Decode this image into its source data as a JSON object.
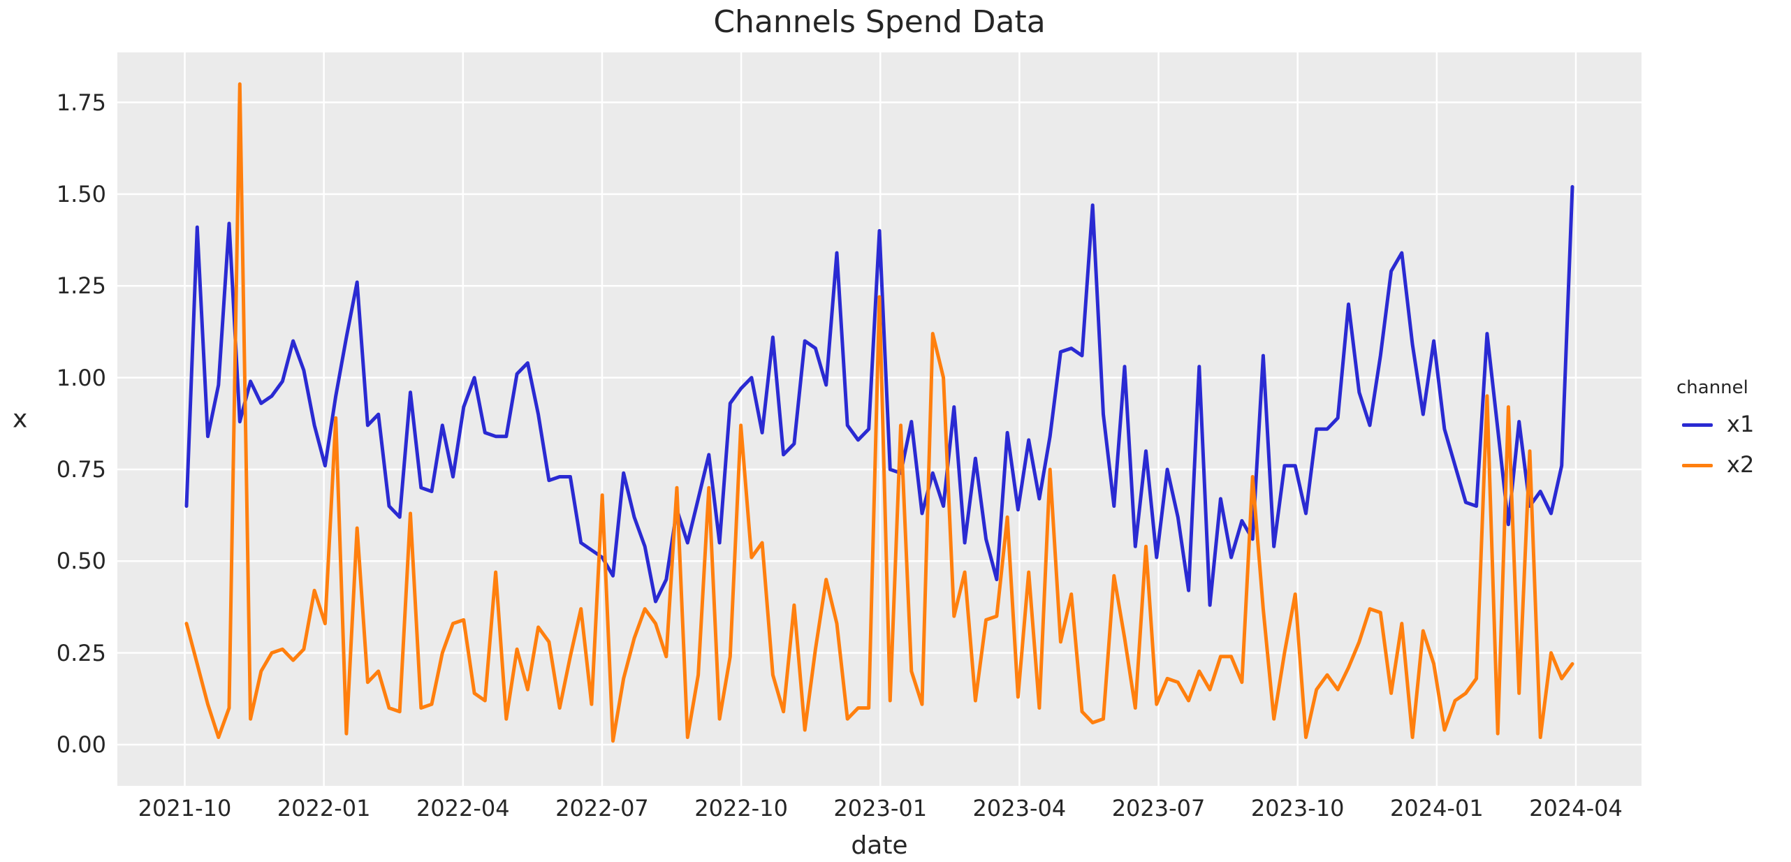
{
  "title": "Channels Spend Data",
  "axes": {
    "xlabel": "date",
    "ylabel": "x",
    "y_ticks": [
      "0.00",
      "0.25",
      "0.50",
      "0.75",
      "1.00",
      "1.25",
      "1.50",
      "1.75"
    ],
    "x_ticks": [
      "2021-10",
      "2022-01",
      "2022-04",
      "2022-07",
      "2022-10",
      "2023-01",
      "2023-04",
      "2023-07",
      "2023-10",
      "2024-01",
      "2024-04"
    ]
  },
  "legend": {
    "title": "channel",
    "entries": [
      {
        "label": "x1",
        "color": "#2a2ad2"
      },
      {
        "label": "x2",
        "color": "#ff7f0e"
      }
    ]
  },
  "style": {
    "plot_background": "#ebebeb",
    "grid_color": "#ffffff",
    "text_color": "#262626",
    "figure_background": "#ffffff"
  },
  "chart_data": {
    "type": "line",
    "title": "Channels Spend Data",
    "xlabel": "date",
    "ylabel": "x",
    "legend_title": "channel",
    "legend_position": "right",
    "grid": true,
    "ylim": [
      -0.11,
      1.89
    ],
    "y_tick_values": [
      0.0,
      0.25,
      0.5,
      0.75,
      1.0,
      1.25,
      1.5,
      1.75
    ],
    "x_tick_labels": [
      "2021-10",
      "2022-01",
      "2022-04",
      "2022-07",
      "2022-10",
      "2023-01",
      "2023-04",
      "2023-07",
      "2023-10",
      "2024-01",
      "2024-04"
    ],
    "frequency": "weekly",
    "x": [
      "2021-10-03",
      "2021-10-10",
      "2021-10-17",
      "2021-10-24",
      "2021-10-31",
      "2021-11-07",
      "2021-11-14",
      "2021-11-21",
      "2021-11-28",
      "2021-12-05",
      "2021-12-12",
      "2021-12-19",
      "2021-12-26",
      "2022-01-02",
      "2022-01-09",
      "2022-01-16",
      "2022-01-23",
      "2022-01-30",
      "2022-02-06",
      "2022-02-13",
      "2022-02-20",
      "2022-02-27",
      "2022-03-06",
      "2022-03-13",
      "2022-03-20",
      "2022-03-27",
      "2022-04-03",
      "2022-04-10",
      "2022-04-17",
      "2022-04-24",
      "2022-05-01",
      "2022-05-08",
      "2022-05-15",
      "2022-05-22",
      "2022-05-29",
      "2022-06-05",
      "2022-06-12",
      "2022-06-19",
      "2022-06-26",
      "2022-07-03",
      "2022-07-10",
      "2022-07-17",
      "2022-07-24",
      "2022-07-31",
      "2022-08-07",
      "2022-08-14",
      "2022-08-21",
      "2022-08-28",
      "2022-09-04",
      "2022-09-11",
      "2022-09-18",
      "2022-09-25",
      "2022-10-02",
      "2022-10-09",
      "2022-10-16",
      "2022-10-23",
      "2022-10-30",
      "2022-11-06",
      "2022-11-13",
      "2022-11-20",
      "2022-11-27",
      "2022-12-04",
      "2022-12-11",
      "2022-12-18",
      "2022-12-25",
      "2023-01-01",
      "2023-01-08",
      "2023-01-15",
      "2023-01-22",
      "2023-01-29",
      "2023-02-05",
      "2023-02-12",
      "2023-02-19",
      "2023-02-26",
      "2023-03-05",
      "2023-03-12",
      "2023-03-19",
      "2023-03-26",
      "2023-04-02",
      "2023-04-09",
      "2023-04-16",
      "2023-04-23",
      "2023-04-30",
      "2023-05-07",
      "2023-05-14",
      "2023-05-21",
      "2023-05-28",
      "2023-06-04",
      "2023-06-11",
      "2023-06-18",
      "2023-06-25",
      "2023-07-02",
      "2023-07-09",
      "2023-07-16",
      "2023-07-23",
      "2023-07-30",
      "2023-08-06",
      "2023-08-13",
      "2023-08-20",
      "2023-08-27",
      "2023-09-03",
      "2023-09-10",
      "2023-09-17",
      "2023-09-24",
      "2023-10-01",
      "2023-10-08",
      "2023-10-15",
      "2023-10-22",
      "2023-10-29",
      "2023-11-05",
      "2023-11-12",
      "2023-11-19",
      "2023-11-26",
      "2023-12-03",
      "2023-12-10",
      "2023-12-17",
      "2023-12-24",
      "2023-12-31",
      "2024-01-07",
      "2024-01-14",
      "2024-01-21",
      "2024-01-28",
      "2024-02-04",
      "2024-02-11",
      "2024-02-18",
      "2024-02-25",
      "2024-03-03",
      "2024-03-10",
      "2024-03-17",
      "2024-03-24",
      "2024-03-31"
    ],
    "series": [
      {
        "name": "x1",
        "color": "#2a2ad2",
        "values": [
          0.65,
          1.41,
          0.84,
          0.98,
          1.42,
          0.88,
          0.99,
          0.93,
          0.95,
          0.99,
          1.1,
          1.02,
          0.87,
          0.76,
          0.95,
          1.11,
          1.26,
          0.87,
          0.9,
          0.65,
          0.62,
          0.96,
          0.7,
          0.69,
          0.87,
          0.73,
          0.92,
          1.0,
          0.85,
          0.84,
          0.84,
          1.01,
          1.04,
          0.9,
          0.72,
          0.73,
          0.73,
          0.55,
          0.53,
          0.51,
          0.46,
          0.74,
          0.62,
          0.54,
          0.39,
          0.45,
          0.64,
          0.55,
          0.67,
          0.79,
          0.55,
          0.93,
          0.97,
          1.0,
          0.85,
          1.11,
          0.79,
          0.82,
          1.1,
          1.08,
          0.98,
          1.34,
          0.87,
          0.83,
          0.86,
          1.4,
          0.75,
          0.74,
          0.88,
          0.63,
          0.74,
          0.65,
          0.92,
          0.55,
          0.78,
          0.56,
          0.45,
          0.85,
          0.64,
          0.83,
          0.67,
          0.84,
          1.07,
          1.08,
          1.06,
          1.47,
          0.9,
          0.65,
          1.03,
          0.54,
          0.8,
          0.51,
          0.75,
          0.62,
          0.42,
          1.03,
          0.38,
          0.67,
          0.51,
          0.61,
          0.56,
          1.06,
          0.54,
          0.76,
          0.76,
          0.63,
          0.86,
          0.86,
          0.89,
          1.2,
          0.96,
          0.87,
          1.06,
          1.29,
          1.34,
          1.09,
          0.9,
          1.1,
          0.86,
          0.76,
          0.66,
          0.65,
          1.12,
          0.86,
          0.6,
          0.88,
          0.65,
          0.69,
          0.63,
          0.76,
          1.52
        ]
      },
      {
        "name": "x2",
        "color": "#ff7f0e",
        "values": [
          0.33,
          0.22,
          0.11,
          0.02,
          0.1,
          1.8,
          0.07,
          0.2,
          0.25,
          0.26,
          0.23,
          0.26,
          0.42,
          0.33,
          0.89,
          0.03,
          0.59,
          0.17,
          0.2,
          0.1,
          0.09,
          0.63,
          0.1,
          0.11,
          0.25,
          0.33,
          0.34,
          0.14,
          0.12,
          0.47,
          0.07,
          0.26,
          0.15,
          0.32,
          0.28,
          0.1,
          0.24,
          0.37,
          0.11,
          0.68,
          0.01,
          0.18,
          0.29,
          0.37,
          0.33,
          0.24,
          0.7,
          0.02,
          0.19,
          0.7,
          0.07,
          0.24,
          0.87,
          0.51,
          0.55,
          0.19,
          0.09,
          0.38,
          0.04,
          0.26,
          0.45,
          0.33,
          0.07,
          0.1,
          0.1,
          1.22,
          0.12,
          0.87,
          0.2,
          0.11,
          1.12,
          1.0,
          0.35,
          0.47,
          0.12,
          0.34,
          0.35,
          0.62,
          0.13,
          0.47,
          0.1,
          0.75,
          0.28,
          0.41,
          0.09,
          0.06,
          0.07,
          0.46,
          0.29,
          0.1,
          0.54,
          0.11,
          0.18,
          0.17,
          0.12,
          0.2,
          0.15,
          0.24,
          0.24,
          0.17,
          0.73,
          0.37,
          0.07,
          0.25,
          0.41,
          0.02,
          0.15,
          0.19,
          0.15,
          0.21,
          0.28,
          0.37,
          0.36,
          0.14,
          0.33,
          0.02,
          0.31,
          0.22,
          0.04,
          0.12,
          0.14,
          0.18,
          0.95,
          0.03,
          0.92,
          0.14,
          0.8,
          0.02,
          0.25,
          0.18,
          0.22
        ]
      }
    ]
  }
}
